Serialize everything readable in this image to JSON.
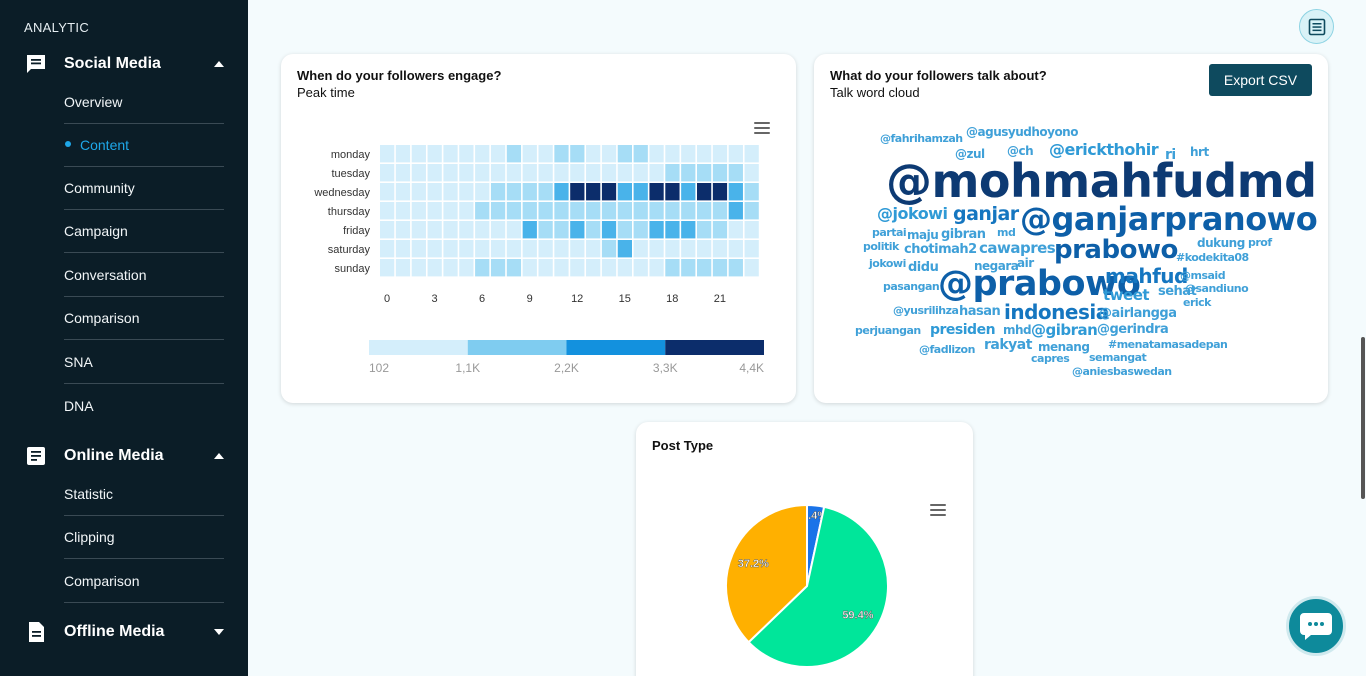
{
  "sidebar": {
    "brand": "ANALYTIC",
    "sections": [
      {
        "label": "Social Media",
        "icon": "chat-icon",
        "expanded": true,
        "items": [
          "Overview",
          "Content",
          "Community",
          "Campaign",
          "Conversation",
          "Comparison",
          "SNA",
          "DNA"
        ],
        "active": "Content"
      },
      {
        "label": "Online Media",
        "icon": "article-icon",
        "expanded": true,
        "items": [
          "Statistic",
          "Clipping",
          "Comparison"
        ]
      },
      {
        "label": "Offline Media",
        "icon": "document-icon",
        "expanded": false,
        "items": []
      }
    ]
  },
  "heatmap_card": {
    "title": "When do your followers engage?",
    "subtitle": "Peak time"
  },
  "cloud_card": {
    "title": "What do your followers talk about?",
    "subtitle": "Talk word cloud",
    "export_label": "Export CSV",
    "words": [
      {
        "t": "@fahrihamzah"
      },
      {
        "t": "@agusyudhoyono"
      },
      {
        "t": "@zul"
      },
      {
        "t": "@ch"
      },
      {
        "t": "@erickthohir"
      },
      {
        "t": "ri"
      },
      {
        "t": "hrt"
      },
      {
        "t": "@mohmahfudmd"
      },
      {
        "t": "@jokowi"
      },
      {
        "t": "ganjar"
      },
      {
        "t": "@ganjarpranowo"
      },
      {
        "t": "partai"
      },
      {
        "t": "maju"
      },
      {
        "t": "gibran"
      },
      {
        "t": "md"
      },
      {
        "t": "politik"
      },
      {
        "t": "chotimah2"
      },
      {
        "t": "cawapres"
      },
      {
        "t": "prabowo"
      },
      {
        "t": "dukung"
      },
      {
        "t": "prof"
      },
      {
        "t": "jokowi"
      },
      {
        "t": "didu"
      },
      {
        "t": "negara"
      },
      {
        "t": "air"
      },
      {
        "t": "#kodekita08"
      },
      {
        "t": "pasangan"
      },
      {
        "t": "@prabowo"
      },
      {
        "t": "mahfud"
      },
      {
        "t": "@msaid"
      },
      {
        "t": "tweet"
      },
      {
        "t": "sehat"
      },
      {
        "t": "@sandiuno"
      },
      {
        "t": "erick"
      },
      {
        "t": "@yusrilihza"
      },
      {
        "t": "hasan"
      },
      {
        "t": "indonesia"
      },
      {
        "t": "@airlangga"
      },
      {
        "t": "perjuangan"
      },
      {
        "t": "presiden"
      },
      {
        "t": "mhd"
      },
      {
        "t": "@gibran"
      },
      {
        "t": "@gerindra"
      },
      {
        "t": "@fadlizon"
      },
      {
        "t": "rakyat"
      },
      {
        "t": "menang"
      },
      {
        "t": "#menatamasadepan"
      },
      {
        "t": "capres"
      },
      {
        "t": "semangat"
      },
      {
        "t": "@aniesbaswedan"
      }
    ]
  },
  "post_type_card": {
    "title": "Post Type"
  },
  "chart_data": [
    {
      "type": "heatmap",
      "rows": [
        "monday",
        "tuesday",
        "wednesday",
        "thursday",
        "friday",
        "saturday",
        "sunday"
      ],
      "columns": [
        0,
        1,
        2,
        3,
        4,
        5,
        6,
        7,
        8,
        9,
        10,
        11,
        12,
        13,
        14,
        15,
        16,
        17,
        18,
        19,
        20,
        21,
        22,
        23
      ],
      "x_ticks": [
        "0",
        "3",
        "6",
        "9",
        "12",
        "15",
        "18",
        "21"
      ],
      "values": [
        [
          1,
          1,
          1,
          1,
          1,
          1,
          1,
          1,
          2,
          1,
          1,
          2,
          2,
          1,
          1,
          2,
          2,
          1,
          1,
          1,
          1,
          1,
          1,
          1
        ],
        [
          1,
          1,
          1,
          1,
          1,
          1,
          1,
          1,
          1,
          1,
          1,
          1,
          1,
          1,
          1,
          1,
          1,
          1,
          2,
          2,
          2,
          2,
          2,
          1
        ],
        [
          1,
          1,
          1,
          1,
          1,
          1,
          1,
          2,
          2,
          2,
          2,
          3,
          4,
          4,
          4,
          3,
          3,
          4,
          4,
          3,
          4,
          4,
          3,
          2
        ],
        [
          1,
          1,
          1,
          1,
          1,
          1,
          2,
          2,
          2,
          2,
          2,
          2,
          2,
          2,
          2,
          2,
          2,
          2,
          2,
          2,
          2,
          2,
          3,
          2
        ],
        [
          1,
          1,
          1,
          1,
          1,
          1,
          1,
          1,
          1,
          3,
          2,
          2,
          3,
          2,
          3,
          2,
          2,
          3,
          3,
          3,
          2,
          2,
          1,
          1
        ],
        [
          1,
          1,
          1,
          1,
          1,
          1,
          1,
          1,
          1,
          1,
          1,
          1,
          1,
          1,
          2,
          3,
          1,
          1,
          1,
          1,
          1,
          1,
          1,
          1
        ],
        [
          1,
          1,
          1,
          1,
          1,
          1,
          2,
          2,
          2,
          1,
          1,
          1,
          1,
          1,
          1,
          1,
          1,
          1,
          2,
          2,
          2,
          2,
          2,
          1
        ]
      ],
      "legend": {
        "labels": [
          "102",
          "1,1K",
          "2,2K",
          "3,3K",
          "4,4K"
        ],
        "colors": [
          "#d4eefb",
          "#7fccf0",
          "#1391de",
          "#0c2d6b"
        ]
      },
      "scale_colors": [
        "#d4eefb",
        "#a6ddf6",
        "#49b3ea",
        "#0c2d6b"
      ]
    },
    {
      "type": "pie",
      "slices": [
        {
          "label": "3.4%",
          "value": 3.4,
          "color": "#1a73e8"
        },
        {
          "label": "59.4%",
          "value": 59.4,
          "color": "#00e69a"
        },
        {
          "label": "37.2%",
          "value": 37.2,
          "color": "#ffb000"
        }
      ]
    }
  ]
}
